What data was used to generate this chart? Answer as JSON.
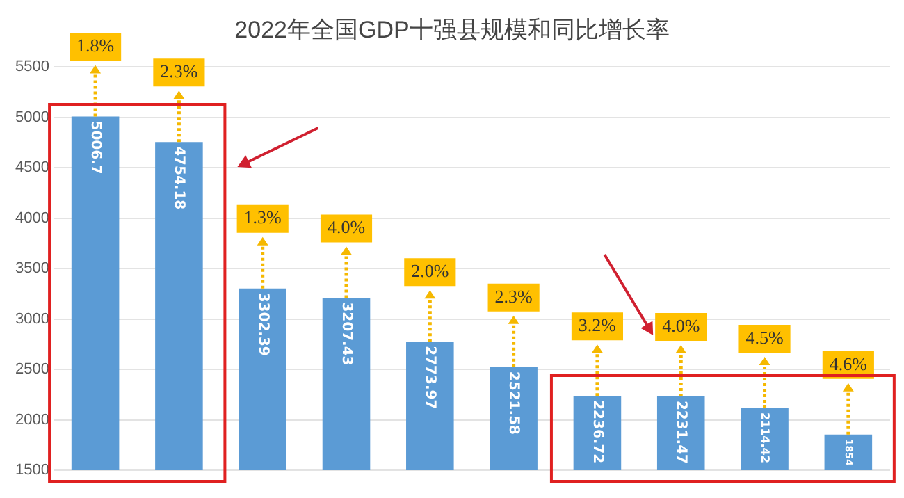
{
  "chart_data": {
    "type": "bar",
    "title": "2022年全国GDP十强县规模和同比增长率",
    "categories": [
      null,
      null,
      null,
      null,
      null,
      null,
      null,
      null,
      null,
      null
    ],
    "values": [
      5006.7,
      4754.18,
      3302.39,
      3207.43,
      2773.97,
      2521.58,
      2236.72,
      2231.47,
      2114.42,
      1854
    ],
    "color": "#5b9bd5",
    "ylim": [
      1500,
      5500
    ],
    "yticks": [
      1500,
      2000,
      2500,
      3000,
      3500,
      4000,
      4500,
      5000,
      5500
    ],
    "grid": "y",
    "data_labels": true,
    "annotations": [
      "1.8%",
      "2.3%",
      "1.3%",
      "4.0%",
      "2.0%",
      "2.3%",
      "3.2%",
      "4.0%",
      "4.5%",
      "4.6%"
    ]
  }
}
